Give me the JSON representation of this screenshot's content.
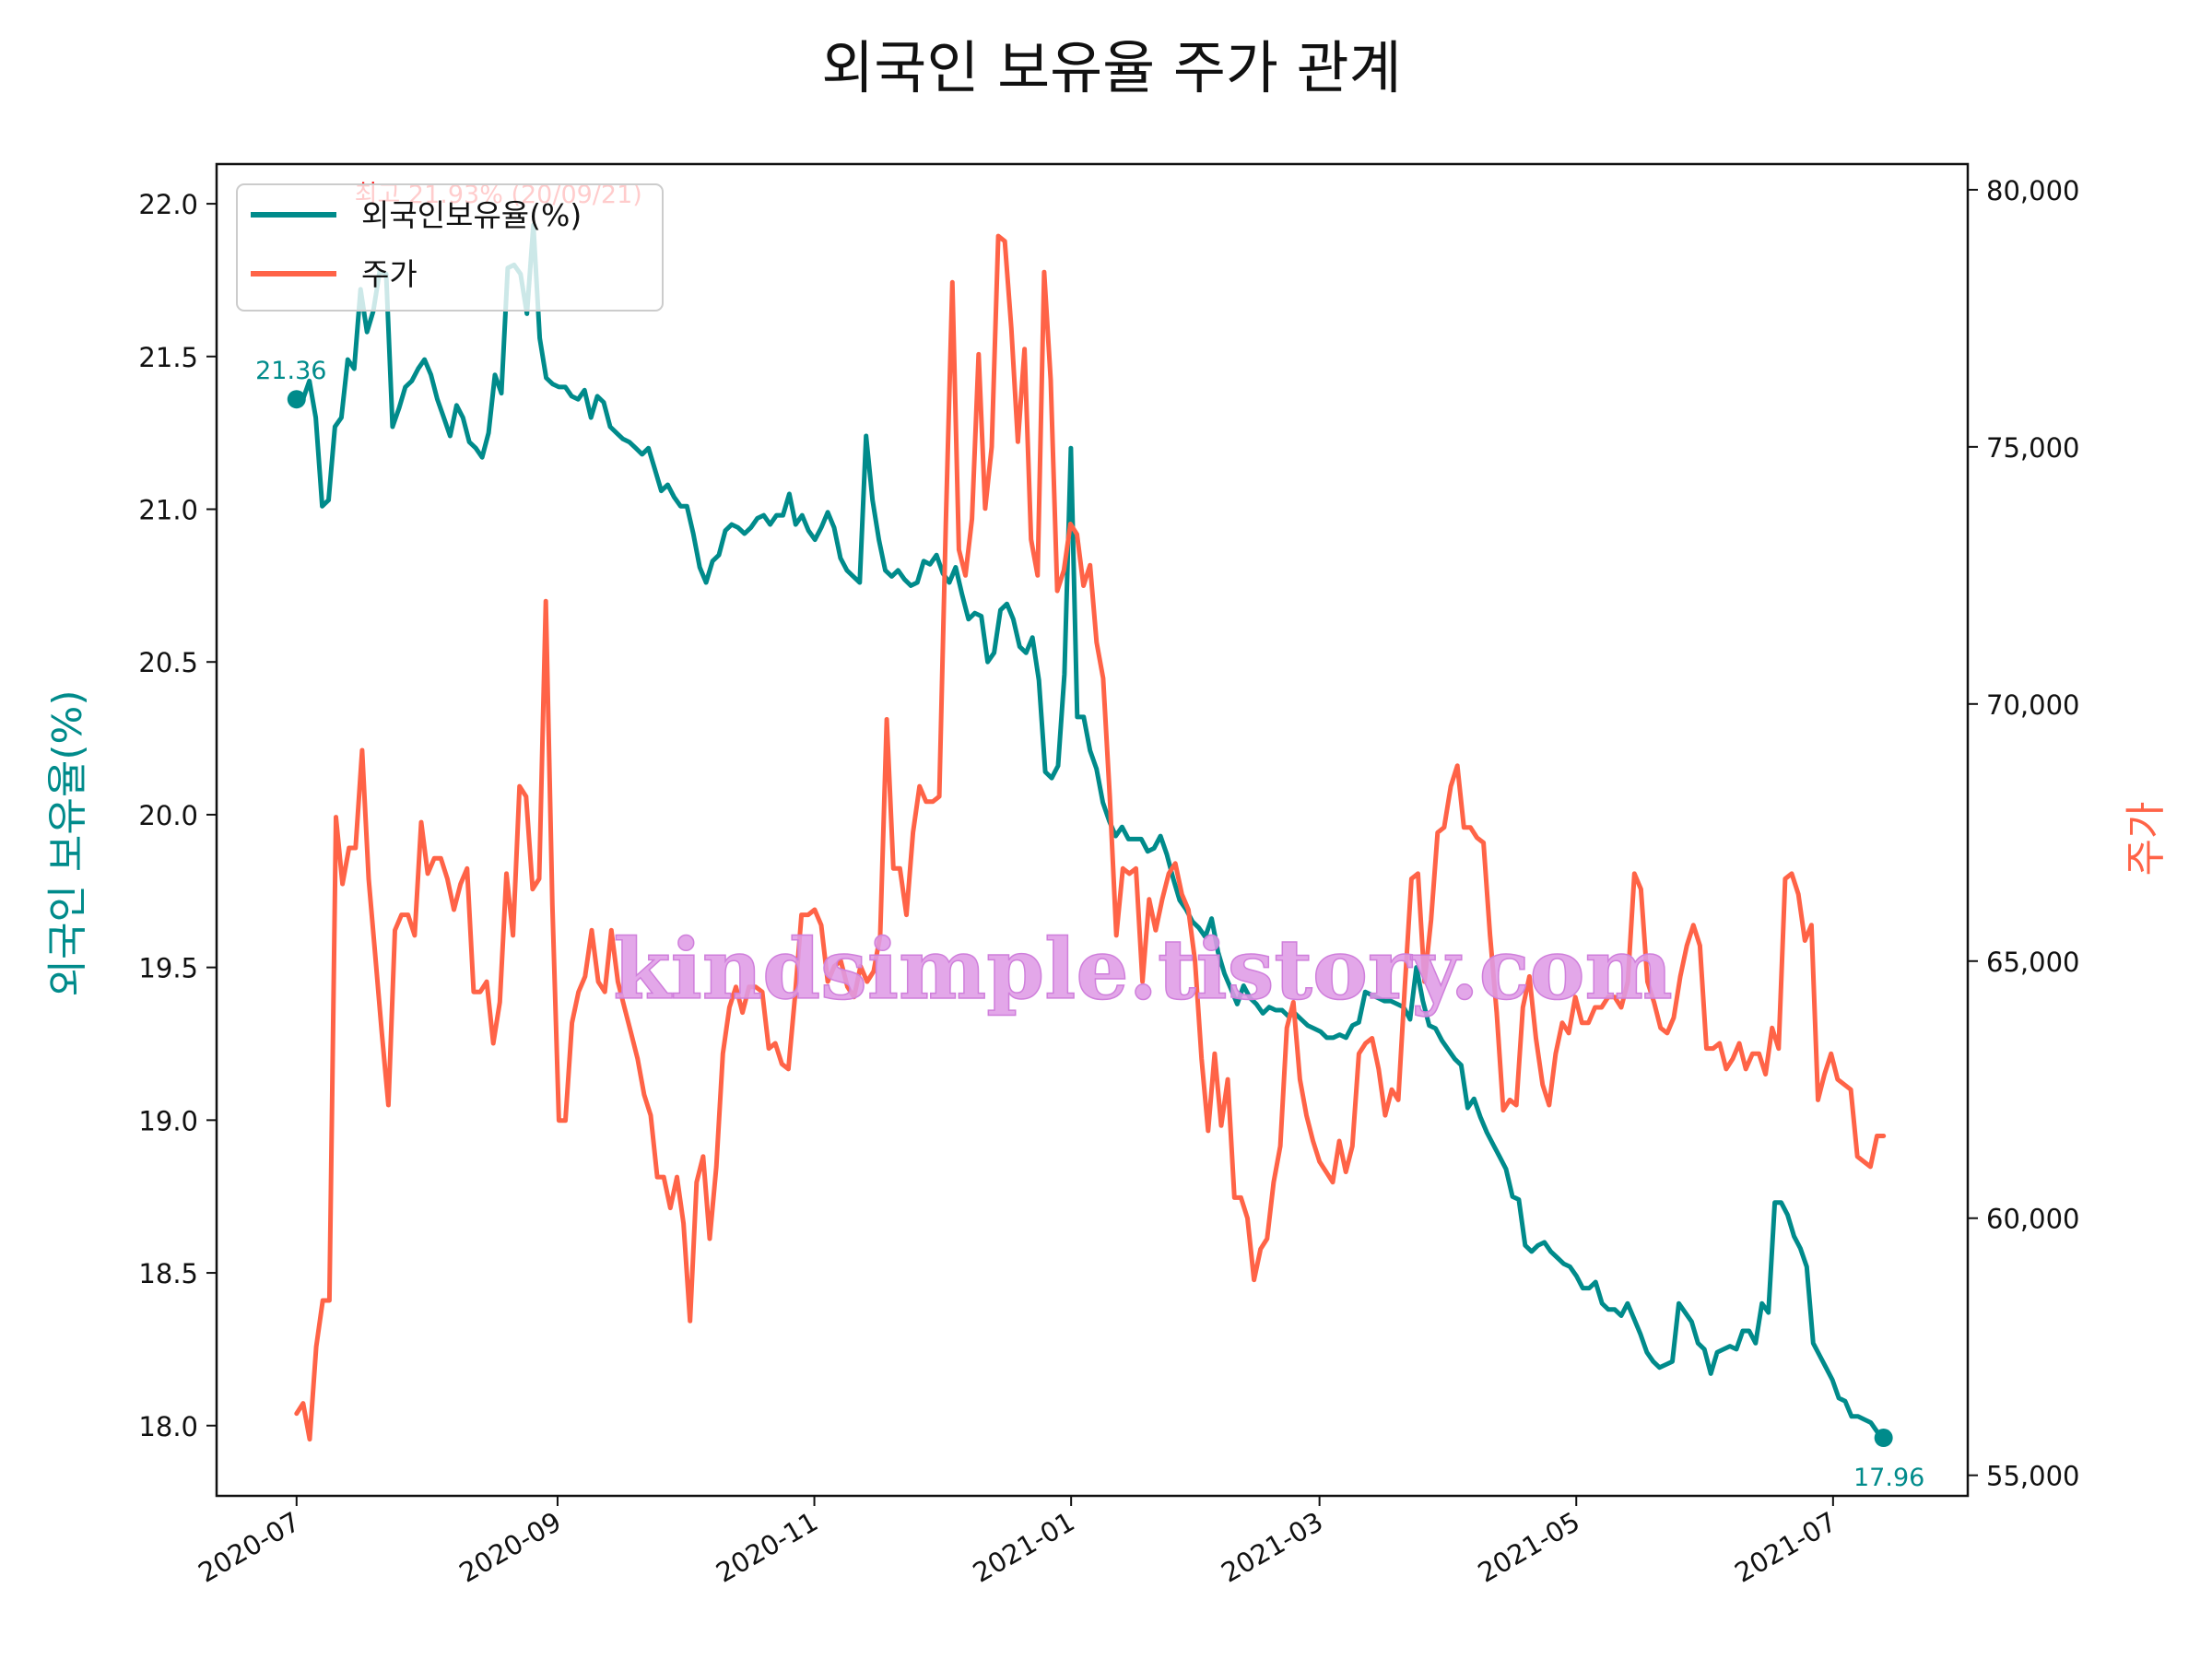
{
  "chart_data": {
    "type": "line",
    "title": "외국인 보유율 주가 관계",
    "ylabel_left": "외국인 보유율(%)",
    "ylabel_right": "주가",
    "left_axis": {
      "ylim": [
        17.77,
        22.13
      ],
      "ticks": [
        18.0,
        18.5,
        19.0,
        19.5,
        20.0,
        20.5,
        21.0,
        21.5,
        22.0
      ],
      "tick_labels": [
        "18.0",
        "18.5",
        "19.0",
        "19.5",
        "20.0",
        "20.5",
        "21.0",
        "21.5",
        "22.0"
      ]
    },
    "right_axis": {
      "ylim": [
        54600,
        80500
      ],
      "ticks": [
        55000,
        60000,
        65000,
        70000,
        75000,
        80000
      ],
      "tick_labels": [
        "55,000",
        "60,000",
        "65,000",
        "70,000",
        "75,000",
        "80,000"
      ]
    },
    "x_axis": {
      "start_date": "2020-07-01",
      "end_date": "2021-07-13",
      "xlim": [
        "2020-06-12",
        "2021-08-02"
      ],
      "ticks": [
        "2020-07-01",
        "2020-09-01",
        "2020-11-01",
        "2021-01-01",
        "2021-03-01",
        "2021-05-01",
        "2021-07-01"
      ],
      "tick_labels": [
        "2020-07",
        "2020-09",
        "2020-11",
        "2021-01",
        "2021-03",
        "2021-05",
        "2021-07"
      ]
    },
    "legend": {
      "position": "top-left"
    },
    "grid": false,
    "series": [
      {
        "name": "외국인보유율(%)",
        "color": "#008b8b",
        "axis": "left",
        "values": [
          21.36,
          21.36,
          21.42,
          21.3,
          21.01,
          21.03,
          21.27,
          21.3,
          21.49,
          21.46,
          21.72,
          21.58,
          21.65,
          21.78,
          21.77,
          21.27,
          21.33,
          21.4,
          21.42,
          21.46,
          21.49,
          21.44,
          21.36,
          21.3,
          21.24,
          21.34,
          21.3,
          21.22,
          21.2,
          21.17,
          21.25,
          21.44,
          21.38,
          21.79,
          21.8,
          21.77,
          21.64,
          21.93,
          21.56,
          21.43,
          21.41,
          21.4,
          21.4,
          21.37,
          21.36,
          21.39,
          21.3,
          21.37,
          21.35,
          21.27,
          21.25,
          21.23,
          21.22,
          21.2,
          21.18,
          21.2,
          21.13,
          21.06,
          21.08,
          21.04,
          21.01,
          21.01,
          20.92,
          20.81,
          20.76,
          20.83,
          20.85,
          20.93,
          20.95,
          20.94,
          20.92,
          20.94,
          20.97,
          20.98,
          20.95,
          20.98,
          20.98,
          21.05,
          20.95,
          20.98,
          20.93,
          20.9,
          20.94,
          20.99,
          20.94,
          20.84,
          20.8,
          20.78,
          20.76,
          21.24,
          21.03,
          20.9,
          20.8,
          20.78,
          20.8,
          20.77,
          20.75,
          20.76,
          20.83,
          20.82,
          20.85,
          20.79,
          20.76,
          20.81,
          20.72,
          20.64,
          20.66,
          20.65,
          20.5,
          20.53,
          20.67,
          20.69,
          20.64,
          20.55,
          20.53,
          20.58,
          20.44,
          20.14,
          20.12,
          20.16,
          20.46,
          21.2,
          20.32,
          20.32,
          20.21,
          20.15,
          20.04,
          19.98,
          19.93,
          19.96,
          19.92,
          19.92,
          19.92,
          19.88,
          19.89,
          19.93,
          19.87,
          19.79,
          19.72,
          19.69,
          19.65,
          19.63,
          19.6,
          19.66,
          19.55,
          19.48,
          19.43,
          19.38,
          19.44,
          19.4,
          19.38,
          19.35,
          19.37,
          19.36,
          19.36,
          19.34,
          19.35,
          19.33,
          19.31,
          19.3,
          19.29,
          19.27,
          19.27,
          19.28,
          19.27,
          19.31,
          19.32,
          19.42,
          19.41,
          19.4,
          19.39,
          19.39,
          19.38,
          19.37,
          19.33,
          19.5,
          19.39,
          19.31,
          19.3,
          19.26,
          19.23,
          19.2,
          19.18,
          19.04,
          19.07,
          19.01,
          18.96,
          18.92,
          18.88,
          18.84,
          18.75,
          18.74,
          18.59,
          18.57,
          18.59,
          18.6,
          18.57,
          18.55,
          18.53,
          18.52,
          18.49,
          18.45,
          18.45,
          18.47,
          18.4,
          18.38,
          18.38,
          18.36,
          18.4,
          18.35,
          18.3,
          18.24,
          18.21,
          18.19,
          18.2,
          18.21,
          18.4,
          18.37,
          18.34,
          18.27,
          18.25,
          18.17,
          18.24,
          18.25,
          18.26,
          18.25,
          18.31,
          18.31,
          18.27,
          18.4,
          18.37,
          18.73,
          18.73,
          18.69,
          18.62,
          18.58,
          18.52,
          18.27,
          18.23,
          18.19,
          18.15,
          18.09,
          18.08,
          18.03,
          18.03,
          18.02,
          18.01,
          17.98,
          17.96
        ]
      },
      {
        "name": "주가",
        "color": "#ff6347",
        "axis": "right",
        "values": [
          56200,
          56400,
          55700,
          57500,
          58400,
          58400,
          67800,
          66500,
          67200,
          67200,
          69100,
          66600,
          65100,
          63600,
          62200,
          65600,
          65900,
          65900,
          65500,
          67700,
          66700,
          67000,
          67000,
          66600,
          66000,
          66500,
          66800,
          64400,
          64400,
          64600,
          63400,
          64200,
          66700,
          65500,
          68400,
          68200,
          66400,
          66600,
          72000,
          66100,
          61900,
          61900,
          63800,
          64400,
          64700,
          65600,
          64600,
          64400,
          65600,
          64600,
          64100,
          63600,
          63100,
          62400,
          62000,
          60800,
          60800,
          60200,
          60800,
          59900,
          58000,
          60700,
          61200,
          59600,
          61000,
          63200,
          64100,
          64500,
          64000,
          64500,
          64500,
          64400,
          63300,
          63400,
          63000,
          62900,
          64300,
          65900,
          65900,
          66000,
          65700,
          64600,
          64900,
          65000,
          64500,
          64300,
          64900,
          64600,
          64800,
          65500,
          69700,
          66800,
          66800,
          65900,
          67500,
          68400,
          68100,
          68100,
          68200,
          73500,
          78200,
          73000,
          72500,
          73600,
          76800,
          73800,
          75000,
          79100,
          79000,
          77300,
          75100,
          76900,
          73200,
          72500,
          78400,
          76300,
          72200,
          72600,
          73500,
          73300,
          72300,
          72700,
          71200,
          70500,
          68200,
          65500,
          66800,
          66700,
          66800,
          64600,
          66200,
          65600,
          66200,
          66700,
          66900,
          66300,
          66000,
          65000,
          63100,
          61700,
          63200,
          61800,
          62700,
          60400,
          60400,
          60000,
          58800,
          59400,
          59600,
          60700,
          61400,
          63700,
          64200,
          62700,
          62000,
          61500,
          61100,
          60900,
          60700,
          61500,
          60900,
          61400,
          63200,
          63400,
          63500,
          62900,
          62000,
          62500,
          62300,
          64500,
          66600,
          66700,
          64600,
          65800,
          67500,
          67600,
          68400,
          68800,
          67600,
          67600,
          67400,
          67300,
          65500,
          64000,
          62100,
          62300,
          62200,
          64100,
          64700,
          63500,
          62600,
          62200,
          63200,
          63800,
          63600,
          64300,
          63800,
          63800,
          64100,
          64100,
          64300,
          64300,
          64100,
          64600,
          66700,
          66400,
          64600,
          64200,
          63700,
          63600,
          63900,
          64700,
          65300,
          65700,
          65300,
          63300,
          63300,
          63400,
          62900,
          63100,
          63400,
          62900,
          63200,
          63200,
          62800,
          63700,
          63300,
          66600,
          66700,
          66300,
          65400,
          65700,
          62300,
          62800,
          63200,
          62700,
          62600,
          62500,
          61200,
          61100,
          61000,
          61600,
          61600
        ]
      }
    ],
    "annotations": {
      "start": "21.36",
      "end": "17.96",
      "max": "최고 21.93% (20/09/21)"
    }
  },
  "watermark": "kindsimple.tistory.com"
}
